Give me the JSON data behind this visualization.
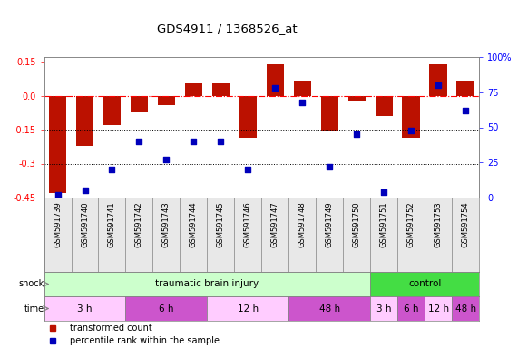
{
  "title": "GDS4911 / 1368526_at",
  "samples": [
    "GSM591739",
    "GSM591740",
    "GSM591741",
    "GSM591742",
    "GSM591743",
    "GSM591744",
    "GSM591745",
    "GSM591746",
    "GSM591747",
    "GSM591748",
    "GSM591749",
    "GSM591750",
    "GSM591751",
    "GSM591752",
    "GSM591753",
    "GSM591754"
  ],
  "bar_values": [
    -0.43,
    -0.22,
    -0.13,
    -0.075,
    -0.04,
    0.055,
    0.055,
    -0.185,
    0.14,
    0.065,
    -0.155,
    -0.02,
    -0.09,
    -0.185,
    0.14,
    0.065
  ],
  "dot_values": [
    2,
    5,
    20,
    40,
    27,
    40,
    40,
    20,
    78,
    68,
    22,
    45,
    4,
    48,
    80,
    62
  ],
  "ylim_left": [
    -0.45,
    0.17
  ],
  "ylim_right": [
    0,
    100
  ],
  "bar_color": "#bb1100",
  "dot_color": "#0000bb",
  "ref_line": 0.0,
  "hline1": -0.15,
  "hline2": -0.3,
  "shock_row": [
    {
      "label": "traumatic brain injury",
      "start": 0,
      "end": 12,
      "color": "#ccffcc"
    },
    {
      "label": "control",
      "start": 12,
      "end": 16,
      "color": "#44dd44"
    }
  ],
  "time_row": [
    {
      "label": "3 h",
      "start": 0,
      "end": 3,
      "color": "#ffccff"
    },
    {
      "label": "6 h",
      "start": 3,
      "end": 6,
      "color": "#cc55cc"
    },
    {
      "label": "12 h",
      "start": 6,
      "end": 9,
      "color": "#ffccff"
    },
    {
      "label": "48 h",
      "start": 9,
      "end": 12,
      "color": "#cc55cc"
    },
    {
      "label": "3 h",
      "start": 12,
      "end": 13,
      "color": "#ffccff"
    },
    {
      "label": "6 h",
      "start": 13,
      "end": 14,
      "color": "#cc55cc"
    },
    {
      "label": "12 h",
      "start": 14,
      "end": 15,
      "color": "#ffccff"
    },
    {
      "label": "48 h",
      "start": 15,
      "end": 16,
      "color": "#cc55cc"
    }
  ],
  "legend_items": [
    {
      "color": "#bb1100",
      "label": "transformed count"
    },
    {
      "color": "#0000bb",
      "label": "percentile rank within the sample"
    }
  ],
  "left_yticks": [
    -0.45,
    -0.3,
    -0.15,
    0.0,
    0.15
  ],
  "right_yticks": [
    0,
    25,
    50,
    75,
    100
  ]
}
